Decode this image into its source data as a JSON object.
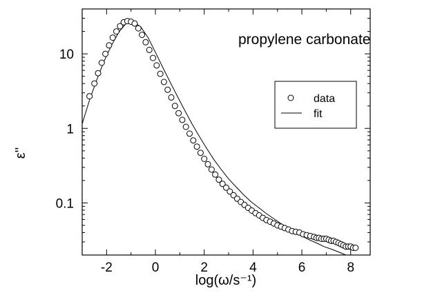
{
  "chart_data": {
    "type": "scatter",
    "title": "propylene carbonate",
    "xlabel": "log(ω/s⁻¹)",
    "ylabel": "ε''",
    "xlim": [
      -3,
      8.8
    ],
    "ylim": [
      0.02,
      40
    ],
    "y_scale": "log",
    "x_ticks": [
      -2,
      0,
      2,
      4,
      6,
      8
    ],
    "x_tick_labels": [
      "-2",
      "0",
      "2",
      "4",
      "6",
      "8"
    ],
    "y_ticks": [
      0.1,
      1,
      10
    ],
    "y_tick_labels": [
      "0.1",
      "1",
      "10"
    ],
    "legend": {
      "placement": "center-right",
      "entries": [
        {
          "label": "data",
          "marker": "circle"
        },
        {
          "label": "fit",
          "marker": "line"
        }
      ]
    },
    "series": [
      {
        "name": "data",
        "kind": "scatter",
        "x": [
          -2.7,
          -2.5,
          -2.35,
          -2.2,
          -2.05,
          -1.9,
          -1.75,
          -1.6,
          -1.45,
          -1.3,
          -1.15,
          -1.0,
          -0.85,
          -0.7,
          -0.55,
          -0.4,
          -0.25,
          -0.1,
          0.05,
          0.2,
          0.35,
          0.5,
          0.65,
          0.8,
          0.95,
          1.1,
          1.25,
          1.4,
          1.55,
          1.7,
          1.85,
          2.0,
          2.15,
          2.3,
          2.45,
          2.6,
          2.75,
          2.9,
          3.05,
          3.2,
          3.35,
          3.5,
          3.65,
          3.8,
          3.95,
          4.1,
          4.25,
          4.4,
          4.55,
          4.7,
          4.85,
          5.0,
          5.15,
          5.3,
          5.45,
          5.6,
          5.75,
          5.9,
          6.05,
          6.2,
          6.35,
          6.5,
          6.6,
          6.7,
          6.8,
          6.9,
          7.0,
          7.1,
          7.2,
          7.3,
          7.4,
          7.5,
          7.6,
          7.7,
          7.8,
          7.9,
          8.0,
          8.1,
          8.2
        ],
        "y": [
          2.7,
          4.0,
          5.5,
          7.6,
          10.0,
          13.0,
          16.5,
          20.0,
          23.5,
          26.5,
          27.5,
          27.0,
          25.5,
          22.0,
          18.0,
          14.3,
          11.3,
          8.8,
          7.0,
          5.4,
          4.2,
          3.3,
          2.6,
          2.0,
          1.6,
          1.3,
          1.05,
          0.85,
          0.69,
          0.57,
          0.47,
          0.39,
          0.33,
          0.28,
          0.24,
          0.205,
          0.18,
          0.16,
          0.142,
          0.127,
          0.114,
          0.103,
          0.094,
          0.086,
          0.079,
          0.073,
          0.068,
          0.063,
          0.059,
          0.056,
          0.053,
          0.05,
          0.048,
          0.046,
          0.044,
          0.042,
          0.041,
          0.04,
          0.038,
          0.037,
          0.036,
          0.035,
          0.034,
          0.034,
          0.033,
          0.033,
          0.033,
          0.032,
          0.031,
          0.031,
          0.03,
          0.029,
          0.028,
          0.027,
          0.026,
          0.026,
          0.026,
          0.025,
          0.025
        ]
      },
      {
        "name": "fit",
        "kind": "line",
        "x": [
          -3.0,
          -2.7,
          -2.4,
          -2.1,
          -1.8,
          -1.5,
          -1.2,
          -0.9,
          -0.6,
          -0.3,
          0.0,
          0.3,
          0.6,
          0.9,
          1.2,
          1.5,
          1.8,
          2.1,
          2.4,
          2.7,
          3.0,
          3.3,
          3.6,
          3.9,
          4.2,
          4.5,
          4.8,
          5.1,
          5.4,
          5.7,
          6.0,
          6.3,
          6.6,
          6.9,
          7.2,
          7.5,
          7.8,
          8.1,
          8.25
        ],
        "y": [
          1.15,
          2.4,
          4.5,
          8.0,
          13.0,
          19.5,
          25.5,
          27.0,
          23.0,
          16.5,
          10.5,
          6.6,
          4.2,
          2.7,
          1.75,
          1.15,
          0.78,
          0.54,
          0.38,
          0.28,
          0.21,
          0.165,
          0.13,
          0.105,
          0.088,
          0.074,
          0.063,
          0.054,
          0.047,
          0.041,
          0.036,
          0.032,
          0.029,
          0.026,
          0.024,
          0.022,
          0.02,
          0.018,
          0.017
        ]
      }
    ]
  }
}
